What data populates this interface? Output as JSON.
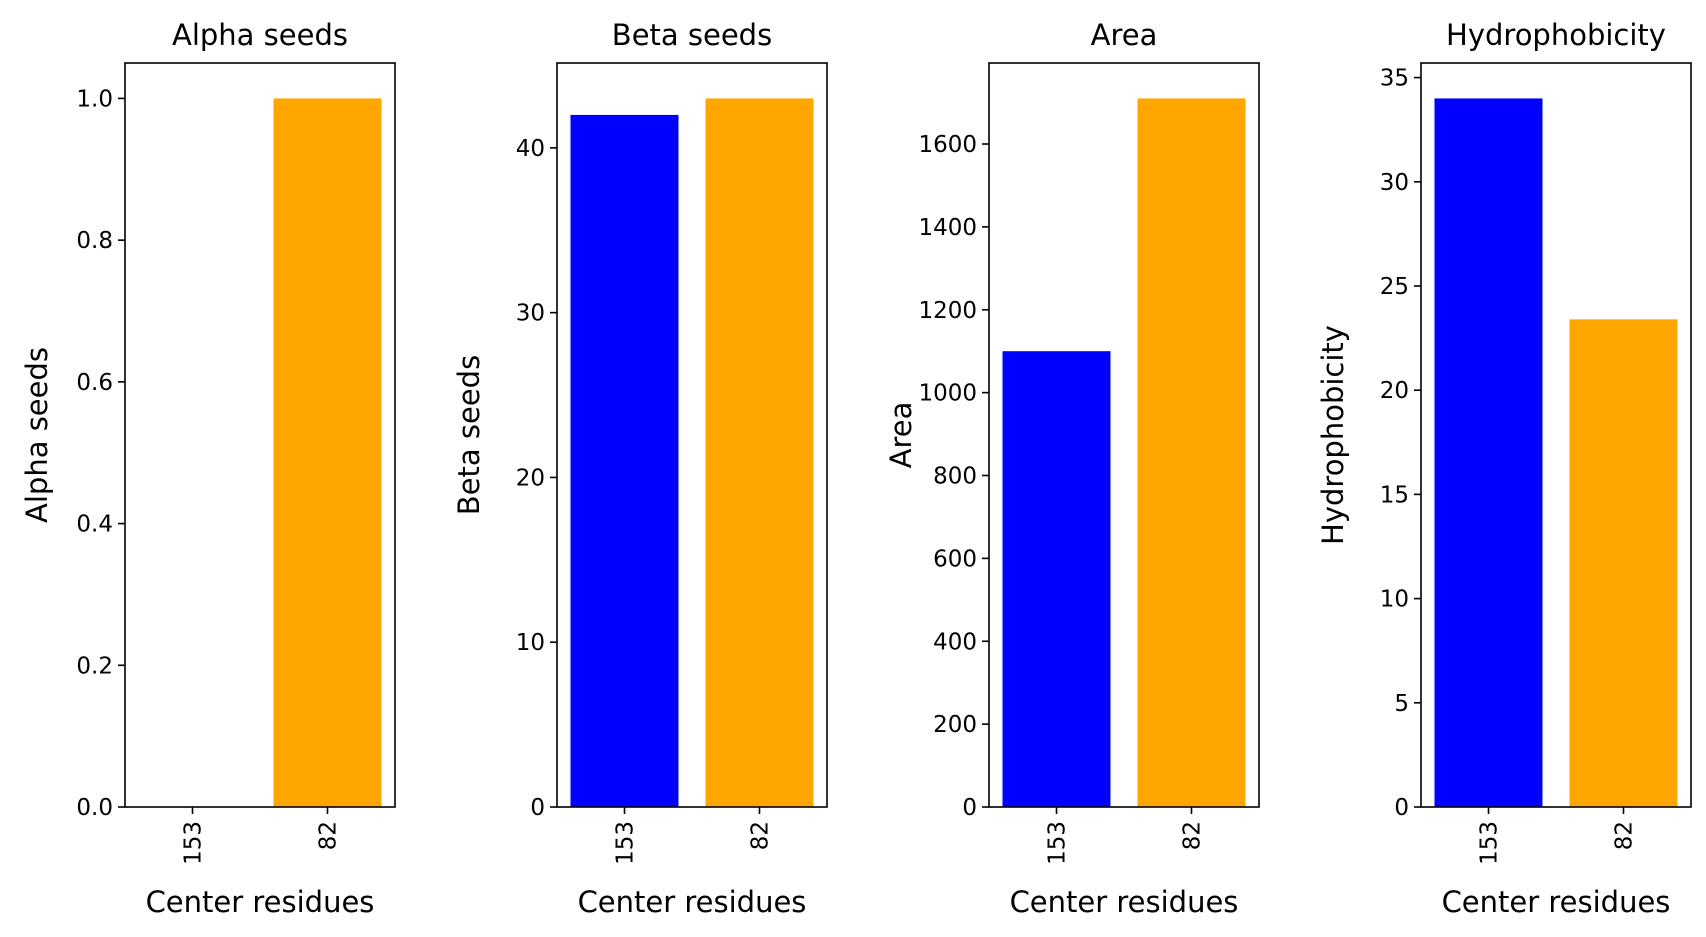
{
  "figure": {
    "background": "#ffffff"
  },
  "chart_data": [
    {
      "type": "bar",
      "title": "Alpha seeds",
      "xlabel": "Center residues",
      "ylabel": "Alpha seeds",
      "categories": [
        "153",
        "82"
      ],
      "values": [
        0.0,
        1.0
      ],
      "colors": [
        "#0000ff",
        "#ffa500"
      ],
      "ylim": [
        0,
        1.05
      ],
      "yticks": [
        0.0,
        0.2,
        0.4,
        0.6,
        0.8,
        1.0
      ],
      "ytick_labels": [
        "0.0",
        "0.2",
        "0.4",
        "0.6",
        "0.8",
        "1.0"
      ],
      "grid": false,
      "legend": "none"
    },
    {
      "type": "bar",
      "title": "Beta seeds",
      "xlabel": "Center residues",
      "ylabel": "Beta seeds",
      "categories": [
        "153",
        "82"
      ],
      "values": [
        42,
        43
      ],
      "colors": [
        "#0000ff",
        "#ffa500"
      ],
      "ylim": [
        0,
        45.15
      ],
      "yticks": [
        0,
        10,
        20,
        30,
        40
      ],
      "ytick_labels": [
        "0",
        "10",
        "20",
        "30",
        "40"
      ],
      "grid": false,
      "legend": "none"
    },
    {
      "type": "bar",
      "title": "Area",
      "xlabel": "Center residues",
      "ylabel": "Area",
      "categories": [
        "153",
        "82"
      ],
      "values": [
        1100,
        1710
      ],
      "colors": [
        "#0000ff",
        "#ffa500"
      ],
      "ylim": [
        0,
        1795.5
      ],
      "yticks": [
        0,
        200,
        400,
        600,
        800,
        1000,
        1200,
        1400,
        1600
      ],
      "ytick_labels": [
        "0",
        "200",
        "400",
        "600",
        "800",
        "1000",
        "1200",
        "1400",
        "1600"
      ],
      "grid": false,
      "legend": "none"
    },
    {
      "type": "bar",
      "title": "Hydrophobicity",
      "xlabel": "Center residues",
      "ylabel": "Hydrophobicity",
      "categories": [
        "153",
        "82"
      ],
      "values": [
        34.0,
        23.4
      ],
      "colors": [
        "#0000ff",
        "#ffa500"
      ],
      "ylim": [
        0,
        35.7
      ],
      "yticks": [
        0,
        5,
        10,
        15,
        20,
        25,
        30,
        35
      ],
      "ytick_labels": [
        "0",
        "5",
        "10",
        "15",
        "20",
        "25",
        "30",
        "35"
      ],
      "grid": false,
      "legend": "none"
    }
  ]
}
